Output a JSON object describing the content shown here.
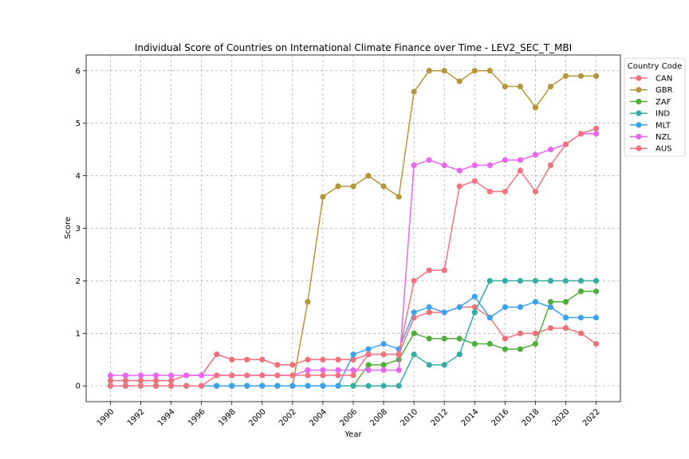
{
  "chart_data": {
    "type": "line",
    "title": "Individual Score of Countries on International Climate Finance over Time - LEV2_SEC_T_MBI",
    "xlabel": "Year",
    "ylabel": "Score",
    "xlim": [
      1988.4,
      2023.6
    ],
    "ylim": [
      -0.3,
      6.3
    ],
    "xticks": [
      "1990",
      "1992",
      "1994",
      "1996",
      "1998",
      "2000",
      "2002",
      "2004",
      "2006",
      "2008",
      "2010",
      "2012",
      "2014",
      "2016",
      "2018",
      "2020",
      "2022"
    ],
    "yticks": [
      "0",
      "1",
      "2",
      "3",
      "4",
      "5",
      "6"
    ],
    "grid": true,
    "legend": {
      "title": "Country Code",
      "placement": "outside-top-right"
    },
    "x": [
      1990,
      1991,
      1992,
      1993,
      1994,
      1995,
      1996,
      1997,
      1998,
      1999,
      2000,
      2001,
      2002,
      2003,
      2004,
      2005,
      2006,
      2007,
      2008,
      2009,
      2010,
      2011,
      2012,
      2013,
      2014,
      2015,
      2016,
      2017,
      2018,
      2019,
      2020,
      2021,
      2022
    ],
    "series": [
      {
        "name": "CAN",
        "color": "#f0707a",
        "values": [
          0.1,
          0.1,
          0.1,
          0.1,
          0.1,
          0.2,
          0.2,
          0.6,
          0.5,
          0.5,
          0.5,
          0.4,
          0.4,
          0.5,
          0.5,
          0.5,
          0.5,
          0.6,
          0.6,
          0.6,
          1.3,
          1.4,
          1.4,
          1.5,
          1.5,
          1.3,
          0.9,
          1.0,
          1.0,
          1.1,
          1.1,
          1.0,
          0.8
        ]
      },
      {
        "name": "GBR",
        "color": "#b5963a",
        "values": [
          0,
          0,
          0,
          0,
          0,
          0,
          0,
          0,
          0,
          0,
          0,
          0,
          0,
          1.6,
          3.6,
          3.8,
          3.8,
          4.0,
          3.8,
          3.6,
          5.6,
          6.0,
          6.0,
          5.8,
          6.0,
          6.0,
          5.7,
          5.7,
          5.3,
          5.7,
          5.9,
          5.9,
          5.9
        ]
      },
      {
        "name": "ZAF",
        "color": "#52ae3c",
        "values": [
          0,
          0,
          0,
          0,
          0,
          0,
          0,
          0,
          0,
          0,
          0,
          0,
          0,
          0,
          0,
          0,
          0,
          0.4,
          0.4,
          0.5,
          1.0,
          0.9,
          0.9,
          0.9,
          0.8,
          0.8,
          0.7,
          0.7,
          0.8,
          1.6,
          1.6,
          1.8,
          1.8
        ]
      },
      {
        "name": "IND",
        "color": "#36ada4",
        "values": [
          0,
          0,
          0,
          0,
          0,
          0,
          0,
          0,
          0,
          0,
          0,
          0,
          0,
          0,
          0,
          0,
          0,
          0,
          0,
          0,
          0.6,
          0.4,
          0.4,
          0.6,
          1.4,
          2.0,
          2.0,
          2.0,
          2.0,
          2.0,
          2.0,
          2.0,
          2.0
        ]
      },
      {
        "name": "MLT",
        "color": "#3ba3ec",
        "values": [
          0,
          0,
          0,
          0,
          0,
          0,
          0,
          0,
          0,
          0,
          0,
          0,
          0,
          0,
          0,
          0,
          0.6,
          0.7,
          0.8,
          0.7,
          1.4,
          1.5,
          1.4,
          1.5,
          1.7,
          1.3,
          1.5,
          1.5,
          1.6,
          1.5,
          1.3,
          1.3,
          1.3
        ]
      },
      {
        "name": "NZL",
        "color": "#e866f0",
        "values": [
          0.2,
          0.2,
          0.2,
          0.2,
          0.2,
          0.2,
          0.2,
          0.2,
          0.2,
          0.2,
          0.2,
          0.2,
          0.2,
          0.3,
          0.3,
          0.3,
          0.3,
          0.3,
          0.3,
          0.3,
          4.2,
          4.3,
          4.2,
          4.1,
          4.2,
          4.2,
          4.3,
          4.3,
          4.4,
          4.5,
          4.6,
          4.8,
          4.8
        ]
      },
      {
        "name": "AUS",
        "color": "#f47381",
        "values": [
          0,
          0,
          0,
          0,
          0,
          0,
          0,
          0.2,
          0.2,
          0.2,
          0.2,
          0.2,
          0.2,
          0.2,
          0.2,
          0.2,
          0.2,
          0.6,
          0.6,
          0.6,
          2.0,
          2.2,
          2.2,
          3.8,
          3.9,
          3.7,
          3.7,
          4.1,
          3.7,
          4.2,
          4.6,
          4.8,
          4.9
        ]
      }
    ]
  }
}
